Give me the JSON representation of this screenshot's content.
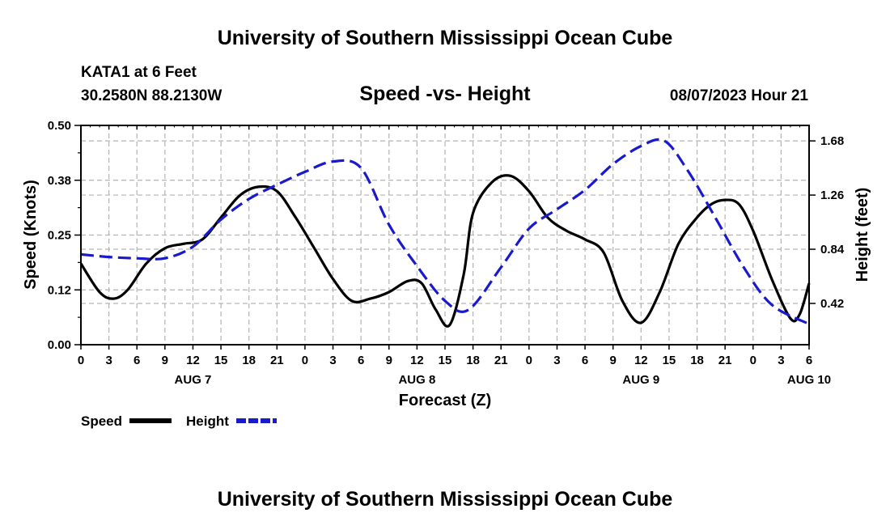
{
  "header": {
    "title": "University of Southern Mississippi Ocean Cube",
    "station": "KATA1 at 6 Feet",
    "coords": "30.2580N  88.2130W",
    "subtitle": "Speed -vs- Height",
    "datetime": "08/07/2023 Hour 21"
  },
  "footer": {
    "title": "University of Southern Mississippi Ocean Cube"
  },
  "legend": {
    "speed_label": "Speed",
    "height_label": "Height",
    "speed_color": "#000000",
    "height_color": "#1a1acd"
  },
  "chart_data": {
    "type": "line",
    "title": "Speed -vs- Height",
    "xlabel": "Forecast (Z)",
    "ylabel": "Speed (Knots)",
    "y2label": "Height (feet)",
    "x_ticks": [
      "0",
      "3",
      "6",
      "9",
      "12",
      "15",
      "18",
      "21",
      "0",
      "3",
      "6",
      "9",
      "12",
      "15",
      "18",
      "21",
      "0",
      "3",
      "6",
      "9",
      "12",
      "15",
      "18",
      "21",
      "0",
      "3",
      "6"
    ],
    "date_labels": [
      {
        "label": "AUG 7",
        "hour": 12
      },
      {
        "label": "AUG 8",
        "hour": 36
      },
      {
        "label": "AUG 9",
        "hour": 60
      },
      {
        "label": "AUG 10",
        "hour": 78
      }
    ],
    "xlim": [
      0,
      78
    ],
    "ylim": [
      0,
      0.5
    ],
    "y_ticks": [
      "0.00",
      "0.12",
      "0.25",
      "0.38",
      "0.50"
    ],
    "y_tick_values": [
      0,
      0.125,
      0.25,
      0.375,
      0.5
    ],
    "y2lim": [
      0.1,
      1.8
    ],
    "y2_ticks": [
      "0.42",
      "0.84",
      "1.26",
      "1.68"
    ],
    "y2_tick_values": [
      0.42,
      0.84,
      1.26,
      1.68
    ],
    "grid": true,
    "series": [
      {
        "name": "Speed",
        "axis": "left",
        "color": "#000000",
        "dash": "solid",
        "x": [
          0,
          2,
          3.5,
          5,
          7,
          9,
          11,
          13,
          15,
          17,
          19,
          21,
          23,
          25,
          27,
          29,
          31,
          33,
          35,
          36.5,
          38,
          39.5,
          41,
          42,
          44,
          46,
          48,
          50,
          52,
          54,
          56,
          58,
          60,
          62,
          64,
          66,
          67.5,
          69,
          70.5,
          72,
          74,
          76,
          77,
          78
        ],
        "values": [
          0.185,
          0.12,
          0.105,
          0.125,
          0.185,
          0.22,
          0.23,
          0.24,
          0.29,
          0.34,
          0.36,
          0.35,
          0.29,
          0.22,
          0.15,
          0.1,
          0.105,
          0.12,
          0.145,
          0.14,
          0.08,
          0.045,
          0.16,
          0.3,
          0.37,
          0.385,
          0.35,
          0.29,
          0.26,
          0.24,
          0.21,
          0.1,
          0.05,
          0.12,
          0.23,
          0.29,
          0.32,
          0.33,
          0.32,
          0.26,
          0.15,
          0.06,
          0.07,
          0.14
        ],
        "note": ""
      },
      {
        "name": "Height",
        "axis": "right",
        "color": "#1a1acd",
        "dash": "dashed",
        "x": [
          0,
          3,
          6,
          9,
          12,
          15,
          18,
          21,
          24,
          27,
          30,
          33,
          36,
          39,
          41.5,
          45,
          48,
          51,
          54,
          57,
          60,
          62.5,
          65,
          68,
          71,
          74,
          78
        ],
        "values": [
          0.8,
          0.78,
          0.77,
          0.77,
          0.86,
          1.07,
          1.23,
          1.34,
          1.44,
          1.52,
          1.47,
          1.03,
          0.71,
          0.44,
          0.37,
          0.7,
          1.0,
          1.15,
          1.3,
          1.5,
          1.64,
          1.68,
          1.45,
          1.08,
          0.7,
          0.41,
          0.26
        ]
      }
    ]
  }
}
